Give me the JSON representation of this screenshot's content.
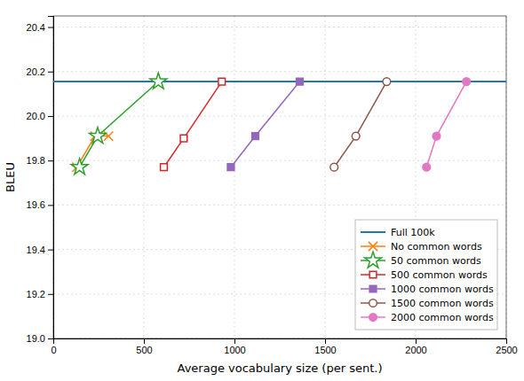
{
  "chart_data": {
    "type": "line",
    "x_label": "Average vocabulary size (per sent.)",
    "y_label": "BLEU",
    "xlim": [
      0,
      2500
    ],
    "ylim": [
      19.0,
      20.45
    ],
    "xticks": [
      0,
      500,
      1000,
      1500,
      2000,
      2500
    ],
    "yticks": [
      {
        "value": 19.0,
        "label": "19.0"
      },
      19.2,
      19.4,
      19.6,
      19.8,
      {
        "value": 20.0,
        "label": "20.0"
      },
      20.2,
      20.4
    ],
    "grid": true,
    "legend": "lower right",
    "series": [
      {
        "name": "Full 100k",
        "type": "hline",
        "values": [
          20.155
        ]
      },
      {
        "name": "No common words",
        "marker": "x",
        "x": [
          130,
          230,
          305
        ],
        "values": [
          19.77,
          19.91,
          19.91
        ]
      },
      {
        "name": "50 common words",
        "marker": "star",
        "x": [
          145,
          245,
          580
        ],
        "values": [
          19.77,
          19.91,
          20.155
        ]
      },
      {
        "name": "500 common words",
        "marker": "square-open",
        "x": [
          610,
          720,
          930
        ],
        "values": [
          19.77,
          19.9,
          20.155
        ]
      },
      {
        "name": "1000 common words",
        "marker": "square",
        "x": [
          980,
          1115,
          1360
        ],
        "values": [
          19.77,
          19.91,
          20.155
        ]
      },
      {
        "name": "1500 common words",
        "marker": "circle-open",
        "x": [
          1550,
          1670,
          1840
        ],
        "values": [
          19.77,
          19.91,
          20.155
        ]
      },
      {
        "name": "2000 common words",
        "marker": "circle",
        "x": [
          2060,
          2115,
          2280
        ],
        "values": [
          19.77,
          19.91,
          20.155
        ]
      }
    ]
  }
}
